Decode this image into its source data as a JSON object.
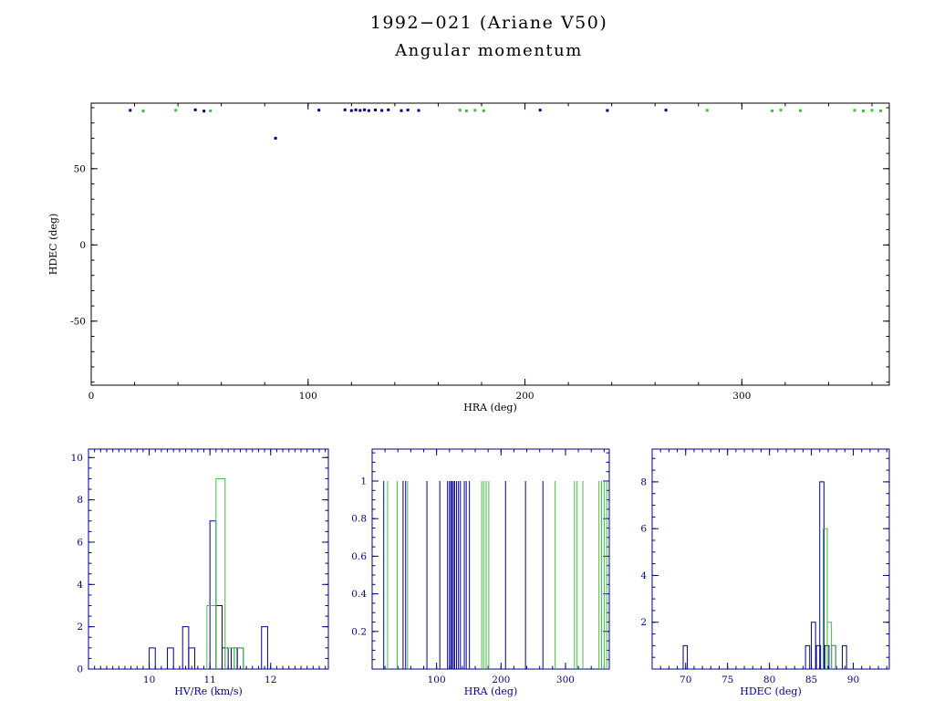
{
  "title": {
    "line1": "1992−021 (Ariane V50)",
    "line2": "Angular momentum"
  },
  "colors": {
    "blue": "#00008b",
    "green": "#3fbf3f",
    "black": "#000000"
  },
  "chart_data": [
    {
      "id": "main-scatter",
      "type": "scatter",
      "title": "1992−021 (Ariane V50) Angular momentum",
      "xlabel": "HRA (deg)",
      "ylabel": "HDEC (deg)",
      "xlim": [
        0,
        368
      ],
      "ylim": [
        -92,
        93
      ],
      "xticks": [
        0,
        100,
        200,
        300
      ],
      "yticks": [
        -50,
        0,
        50
      ],
      "xminor": 20,
      "yminor": 10,
      "grid": false,
      "legend": false,
      "axis_color_key": "black",
      "series": [
        {
          "name": "series-blue",
          "color_key": "blue",
          "points": [
            [
              18,
              88.3
            ],
            [
              48,
              88.6
            ],
            [
              52,
              87.8
            ],
            [
              85,
              70
            ],
            [
              105,
              88.4
            ],
            [
              117,
              88.6
            ],
            [
              120,
              88.1
            ],
            [
              122,
              88.6
            ],
            [
              124,
              88.2
            ],
            [
              126,
              88.6
            ],
            [
              128,
              88.1
            ],
            [
              131,
              88.5
            ],
            [
              134,
              88.2
            ],
            [
              137,
              88.6
            ],
            [
              143,
              88.1
            ],
            [
              146,
              88.5
            ],
            [
              151,
              88.2
            ],
            [
              207,
              88.4
            ],
            [
              238,
              88.2
            ],
            [
              265,
              88.4
            ]
          ]
        },
        {
          "name": "series-green",
          "color_key": "green",
          "points": [
            [
              24,
              87.9
            ],
            [
              39,
              88.3
            ],
            [
              55,
              88.0
            ],
            [
              170,
              88.4
            ],
            [
              173,
              87.9
            ],
            [
              177,
              88.3
            ],
            [
              181,
              88.0
            ],
            [
              284,
              88.3
            ],
            [
              314,
              88.0
            ],
            [
              318,
              88.4
            ],
            [
              327,
              88.1
            ],
            [
              352,
              88.3
            ],
            [
              356,
              87.9
            ],
            [
              360,
              88.3
            ],
            [
              364,
              88.0
            ]
          ]
        }
      ]
    },
    {
      "id": "hist-hv",
      "type": "histogram",
      "xlabel": "HV/Re (km/s)",
      "ylabel": "",
      "xlim": [
        9.0,
        12.95
      ],
      "ylim": [
        0,
        10.4
      ],
      "xticks": [
        10,
        11,
        12
      ],
      "yticks": [
        0,
        2,
        4,
        6,
        8,
        10
      ],
      "xminor": 0.1,
      "yminor": 0.5,
      "grid": false,
      "legend": false,
      "axis_color_key": "blue",
      "bin_width": 0.1,
      "series": [
        {
          "name": "series-blue",
          "color_key": "blue",
          "bins": [
            [
              10.0,
              1
            ],
            [
              10.3,
              1
            ],
            [
              10.55,
              2
            ],
            [
              10.65,
              1
            ],
            [
              11.0,
              7
            ],
            [
              11.1,
              3
            ],
            [
              11.2,
              1
            ],
            [
              11.35,
              1
            ],
            [
              11.45,
              1
            ],
            [
              11.85,
              2
            ]
          ]
        },
        {
          "name": "series-green",
          "color_key": "green",
          "bin_width": 0.15,
          "bins": [
            [
              10.95,
              3
            ],
            [
              11.1,
              9
            ],
            [
              11.25,
              1
            ],
            [
              11.4,
              1
            ]
          ]
        }
      ]
    },
    {
      "id": "spikes-hra",
      "type": "spikes",
      "xlabel": "HRA (deg)",
      "ylabel": "",
      "xlim": [
        0,
        368
      ],
      "ylim": [
        0,
        1.17
      ],
      "xticks": [
        100,
        200,
        300
      ],
      "yticks": [
        0.2,
        0.4,
        0.6,
        0.8,
        1
      ],
      "xminor": 20,
      "yminor": 0.05,
      "grid": false,
      "legend": false,
      "axis_color_key": "blue",
      "spike_height": 1,
      "series": [
        {
          "name": "series-blue",
          "color_key": "blue",
          "x": [
            18,
            48,
            52,
            85,
            105,
            117,
            120,
            122,
            124,
            126,
            128,
            131,
            134,
            137,
            143,
            146,
            151,
            207,
            238,
            265
          ]
        },
        {
          "name": "series-green",
          "color_key": "green",
          "x": [
            24,
            39,
            55,
            170,
            173,
            177,
            181,
            284,
            314,
            318,
            327,
            352,
            356,
            360,
            364
          ]
        }
      ]
    },
    {
      "id": "hist-hdec",
      "type": "histogram",
      "xlabel": "HDEC (deg)",
      "ylabel": "",
      "xlim": [
        66,
        94.3
      ],
      "ylim": [
        0,
        9.4
      ],
      "xticks": [
        70,
        75,
        80,
        85,
        90
      ],
      "yticks": [
        2,
        4,
        6,
        8
      ],
      "xminor": 1,
      "yminor": 0.5,
      "grid": false,
      "legend": false,
      "axis_color_key": "blue",
      "bin_width": 0.5,
      "series": [
        {
          "name": "series-blue",
          "color_key": "blue",
          "bins": [
            [
              69.7,
              1
            ],
            [
              84.3,
              1
            ],
            [
              85.0,
              2
            ],
            [
              85.6,
              1
            ],
            [
              86.0,
              8
            ],
            [
              86.6,
              1
            ],
            [
              87.4,
              1
            ],
            [
              88.7,
              1
            ]
          ]
        },
        {
          "name": "series-green",
          "color_key": "green",
          "bins": [
            [
              86.4,
              6
            ],
            [
              86.9,
              2
            ],
            [
              87.4,
              1
            ]
          ]
        }
      ]
    }
  ]
}
